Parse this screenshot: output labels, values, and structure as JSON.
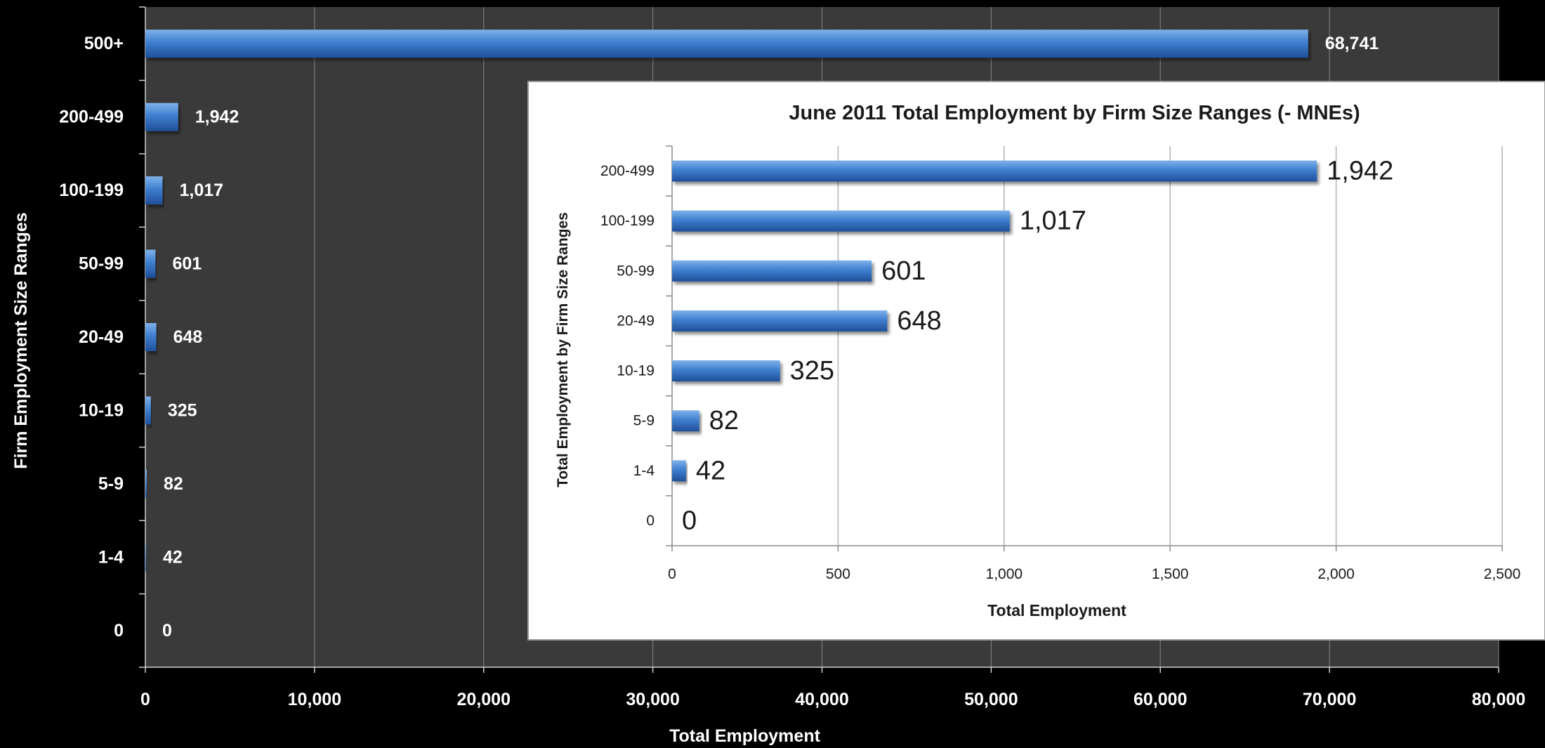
{
  "colors": {
    "background": "#000000",
    "main_plot_bg": "#3a3a3a",
    "inset_bg": "#ffffff",
    "bar_light": "#7fb2ea",
    "bar_mid": "#3f7fd0",
    "bar_dark": "#1f4f99",
    "main_text": "#ffffff",
    "inset_text": "#1a1a1a"
  },
  "chart_data": [
    {
      "id": "main",
      "type": "bar",
      "orientation": "horizontal",
      "title": "",
      "xlabel": "Total Employment",
      "ylabel": "Firm Employment  Size Ranges",
      "categories": [
        "500+",
        "200-499",
        "100-199",
        "50-99",
        "20-49",
        "10-19",
        "5-9",
        "1-4",
        "0"
      ],
      "values": [
        68741,
        1942,
        1017,
        601,
        648,
        325,
        82,
        42,
        0
      ],
      "value_labels": [
        "68,741",
        "1,942",
        "1,017",
        "601",
        "648",
        "325",
        "82",
        "42",
        "0"
      ],
      "xlim": [
        0,
        80000
      ],
      "xticks": [
        0,
        10000,
        20000,
        30000,
        40000,
        50000,
        60000,
        70000,
        80000
      ],
      "xtick_labels": [
        "0",
        "10,000",
        "20,000",
        "30,000",
        "40,000",
        "50,000",
        "60,000",
        "70,000",
        "80,000"
      ],
      "grid": "vertical",
      "legend": "none"
    },
    {
      "id": "inset",
      "type": "bar",
      "orientation": "horizontal",
      "title": "June 2011 Total Employment by Firm Size Ranges (- MNEs)",
      "xlabel": "Total Employment",
      "ylabel": "Total Employment by Firm Size Ranges",
      "categories": [
        "200-499",
        "100-199",
        "50-99",
        "20-49",
        "10-19",
        "5-9",
        "1-4",
        "0"
      ],
      "values": [
        1942,
        1017,
        601,
        648,
        325,
        82,
        42,
        0
      ],
      "value_labels": [
        "1,942",
        "1,017",
        "601",
        "648",
        "325",
        "82",
        "42",
        "0"
      ],
      "xlim": [
        0,
        2500
      ],
      "xticks": [
        0,
        500,
        1000,
        1500,
        2000,
        2500
      ],
      "xtick_labels": [
        "0",
        "500",
        "1,000",
        "1,500",
        "2,000",
        "2,500"
      ],
      "grid": "vertical",
      "legend": "none"
    }
  ]
}
